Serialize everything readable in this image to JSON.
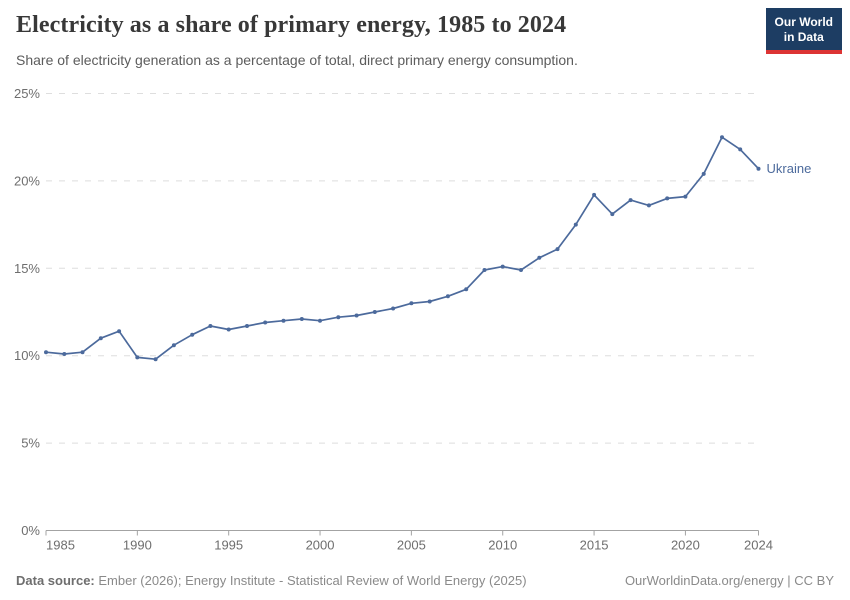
{
  "header": {
    "title": "Electricity as a share of primary energy, 1985 to 2024",
    "subtitle": "Share of electricity generation as a percentage of total, direct primary energy consumption.",
    "logo": {
      "line1": "Our World",
      "line2": "in Data"
    }
  },
  "chart_data": {
    "type": "line",
    "title": "Electricity as a share of primary energy, 1985 to 2024",
    "xlabel": "",
    "ylabel": "",
    "xlim": [
      1985,
      2024
    ],
    "ylim": [
      0,
      25
    ],
    "x_ticks": [
      1985,
      1990,
      1995,
      2000,
      2005,
      2010,
      2015,
      2020,
      2024
    ],
    "y_ticks": [
      0,
      5,
      10,
      15,
      20,
      25
    ],
    "y_tick_suffix": "%",
    "grid": "horizontal-dashed",
    "legend": "end-of-line-label",
    "x": [
      1985,
      1986,
      1987,
      1988,
      1989,
      1990,
      1991,
      1992,
      1993,
      1994,
      1995,
      1996,
      1997,
      1998,
      1999,
      2000,
      2001,
      2002,
      2003,
      2004,
      2005,
      2006,
      2007,
      2008,
      2009,
      2010,
      2011,
      2012,
      2013,
      2014,
      2015,
      2016,
      2017,
      2018,
      2019,
      2020,
      2021,
      2022,
      2023,
      2024
    ],
    "series": [
      {
        "name": "Ukraine",
        "color": "#4c6a9c",
        "values": [
          10.2,
          10.1,
          10.2,
          11.0,
          11.4,
          9.9,
          9.8,
          10.6,
          11.2,
          11.7,
          11.5,
          11.7,
          11.9,
          12.0,
          12.1,
          12.0,
          12.2,
          12.3,
          12.5,
          12.7,
          13.0,
          13.1,
          13.4,
          13.8,
          14.9,
          15.1,
          14.9,
          15.6,
          16.1,
          17.5,
          19.2,
          18.1,
          18.9,
          18.6,
          19.0,
          19.1,
          20.4,
          22.5,
          21.8,
          20.7
        ]
      }
    ]
  },
  "footer": {
    "source_label": "Data source:",
    "source_text": " Ember (2026); Energy Institute - Statistical Review of World Energy (2025)",
    "attribution": "OurWorldinData.org/energy | CC BY"
  },
  "colors": {
    "line": "#4c6a9c",
    "gridline": "#dedede",
    "axis": "#a3a3a3",
    "tick_label": "#6e6e6e",
    "logo_bg": "#1d3d63",
    "logo_bar": "#dc3434"
  }
}
